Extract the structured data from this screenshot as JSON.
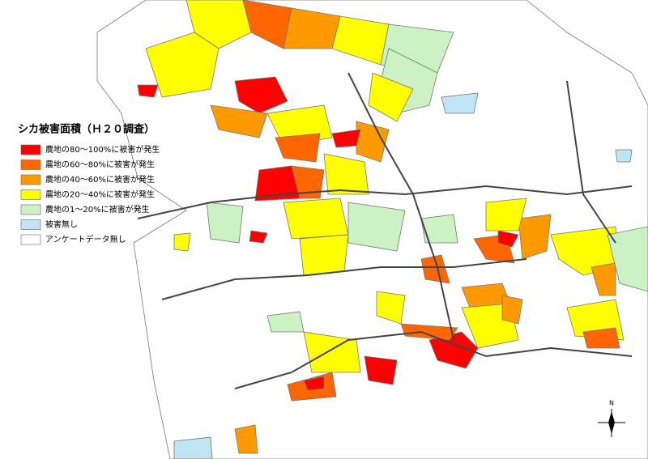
{
  "legend": {
    "title": "シカ被害面積（Ｈ２０調査）",
    "items": [
      {
        "label": "農地の80～100%に被害が発生",
        "color": "#ff0000"
      },
      {
        "label": "農地の60～80%に被害が発生",
        "color": "#ff6600"
      },
      {
        "label": "農地の40～60%に被害が発生",
        "color": "#ff9900"
      },
      {
        "label": "農地の20～40%に被害が発生",
        "color": "#ffff00"
      },
      {
        "label": "農地の1～20%に被害が発生",
        "color": "#ccf2c4"
      },
      {
        "label": "被害無し",
        "color": "#c0e4f4"
      },
      {
        "label": "アンケートデータ無し",
        "color": "#ffffff"
      }
    ]
  },
  "compass": {
    "label": "N"
  }
}
